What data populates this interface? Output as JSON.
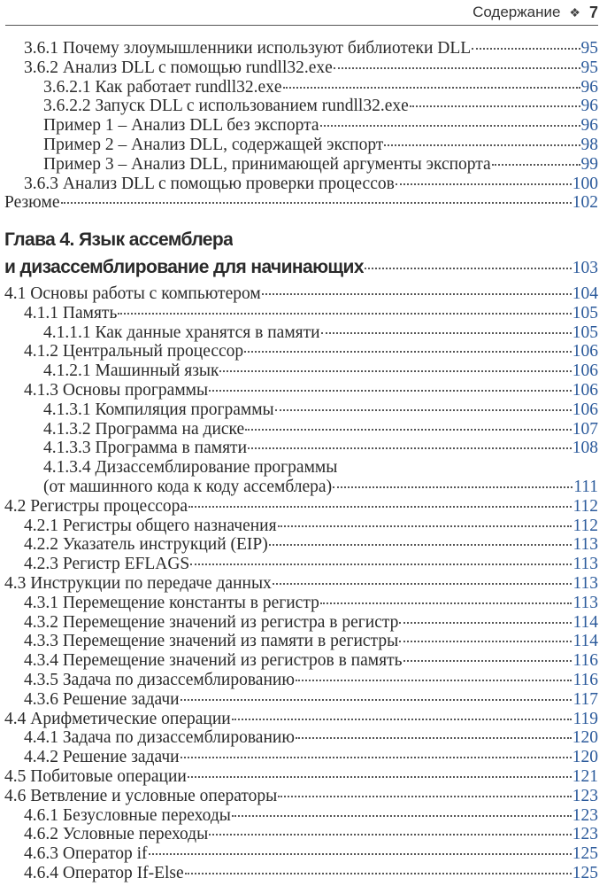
{
  "header": {
    "section": "Содержание",
    "ornament": "❖",
    "page_number": "7"
  },
  "colors": {
    "page_number": "#2b5a9b",
    "text": "#2a2a2a"
  },
  "toc_top": [
    {
      "level": 2,
      "title": "3.6.1 Почему злоумышленники используют библиотеки DLL",
      "page": "95"
    },
    {
      "level": 2,
      "title": "3.6.2 Анализ DLL с помощью rundll32.exe",
      "page": "95"
    },
    {
      "level": 3,
      "title": "3.6.2.1 Как работает rundll32.exe",
      "page": "96"
    },
    {
      "level": 3,
      "title": "3.6.2.2 Запуск DLL с использованием rundll32.exe",
      "page": "96"
    },
    {
      "level": 3,
      "title": "Пример 1 – Анализ DLL без экспорта",
      "page": "96"
    },
    {
      "level": 3,
      "title": "Пример 2 – Анализ DLL, содержащей экспорт",
      "page": "98"
    },
    {
      "level": 3,
      "title": "Пример 3 – Анализ DLL, принимающей аргументы экспорта",
      "page": "99"
    },
    {
      "level": 2,
      "title": "3.6.3 Анализ DLL с помощью проверки процессов",
      "page": "100"
    },
    {
      "level": 1,
      "title": "Резюме",
      "page": "102"
    }
  ],
  "chapter": {
    "title_line1": "Глава 4. Язык ассемблера",
    "title_line2": "и дизассемблирование для начинающих",
    "page": "103"
  },
  "toc_main": [
    {
      "level": 1,
      "title": "4.1 Основы работы с компьютером",
      "page": "104"
    },
    {
      "level": 2,
      "title": "4.1.1 Память",
      "page": "105"
    },
    {
      "level": 3,
      "title": "4.1.1.1 Как данные хранятся в памяти",
      "page": "105"
    },
    {
      "level": 2,
      "title": "4.1.2 Центральный процессор",
      "page": "106"
    },
    {
      "level": 3,
      "title": "4.1.2.1 Машинный язык",
      "page": "106"
    },
    {
      "level": 2,
      "title": "4.1.3 Основы программы",
      "page": "106"
    },
    {
      "level": 3,
      "title": "4.1.3.1 Компиляция программы",
      "page": "106"
    },
    {
      "level": 3,
      "title": "4.1.3.2 Программа на диске",
      "page": "107"
    },
    {
      "level": 3,
      "title": "4.1.3.3 Программа в памяти",
      "page": "108"
    },
    {
      "level": 3,
      "title": "4.1.3.4 Дизассемблирование программы",
      "continuation": "(от машинного кода к коду ассемблера)",
      "page": "111"
    },
    {
      "level": 1,
      "title": "4.2 Регистры процессора",
      "page": "112"
    },
    {
      "level": 2,
      "title": "4.2.1 Регистры общего назначения",
      "page": "112"
    },
    {
      "level": 2,
      "title": "4.2.2 Указатель инструкций (EIP)",
      "page": "113"
    },
    {
      "level": 2,
      "title": "4.2.3 Регистр EFLAGS",
      "page": "113"
    },
    {
      "level": 1,
      "title": "4.3 Инструкции по передаче данных",
      "page": "113"
    },
    {
      "level": 2,
      "title": "4.3.1 Перемещение константы в регистр",
      "page": "113"
    },
    {
      "level": 2,
      "title": "4.3.2 Перемещение значений из регистра в регистр",
      "page": "114"
    },
    {
      "level": 2,
      "title": "4.3.3 Перемещение значений из памяти в регистры",
      "page": "114"
    },
    {
      "level": 2,
      "title": "4.3.4 Перемещение значений из регистров в память",
      "page": "116"
    },
    {
      "level": 2,
      "title": "4.3.5 Задача по дизассемблированию",
      "page": "116"
    },
    {
      "level": 2,
      "title": "4.3.6 Решение задачи",
      "page": "117"
    },
    {
      "level": 1,
      "title": "4.4 Арифметические операции",
      "page": "119"
    },
    {
      "level": 2,
      "title": "4.4.1 Задача по дизассемблированию",
      "page": "120"
    },
    {
      "level": 2,
      "title": "4.4.2 Решение задачи",
      "page": "120"
    },
    {
      "level": 1,
      "title": "4.5 Побитовые операции",
      "page": "121"
    },
    {
      "level": 1,
      "title": "4.6 Ветвление и условные операторы",
      "page": "123"
    },
    {
      "level": 2,
      "title": "4.6.1 Безусловные переходы",
      "page": "123"
    },
    {
      "level": 2,
      "title": "4.6.2 Условные переходы",
      "page": "123"
    },
    {
      "level": 2,
      "title": "4.6.3 Оператор if",
      "page": "125"
    },
    {
      "level": 2,
      "title": "4.6.4 Оператор If-Else",
      "page": "125"
    }
  ]
}
